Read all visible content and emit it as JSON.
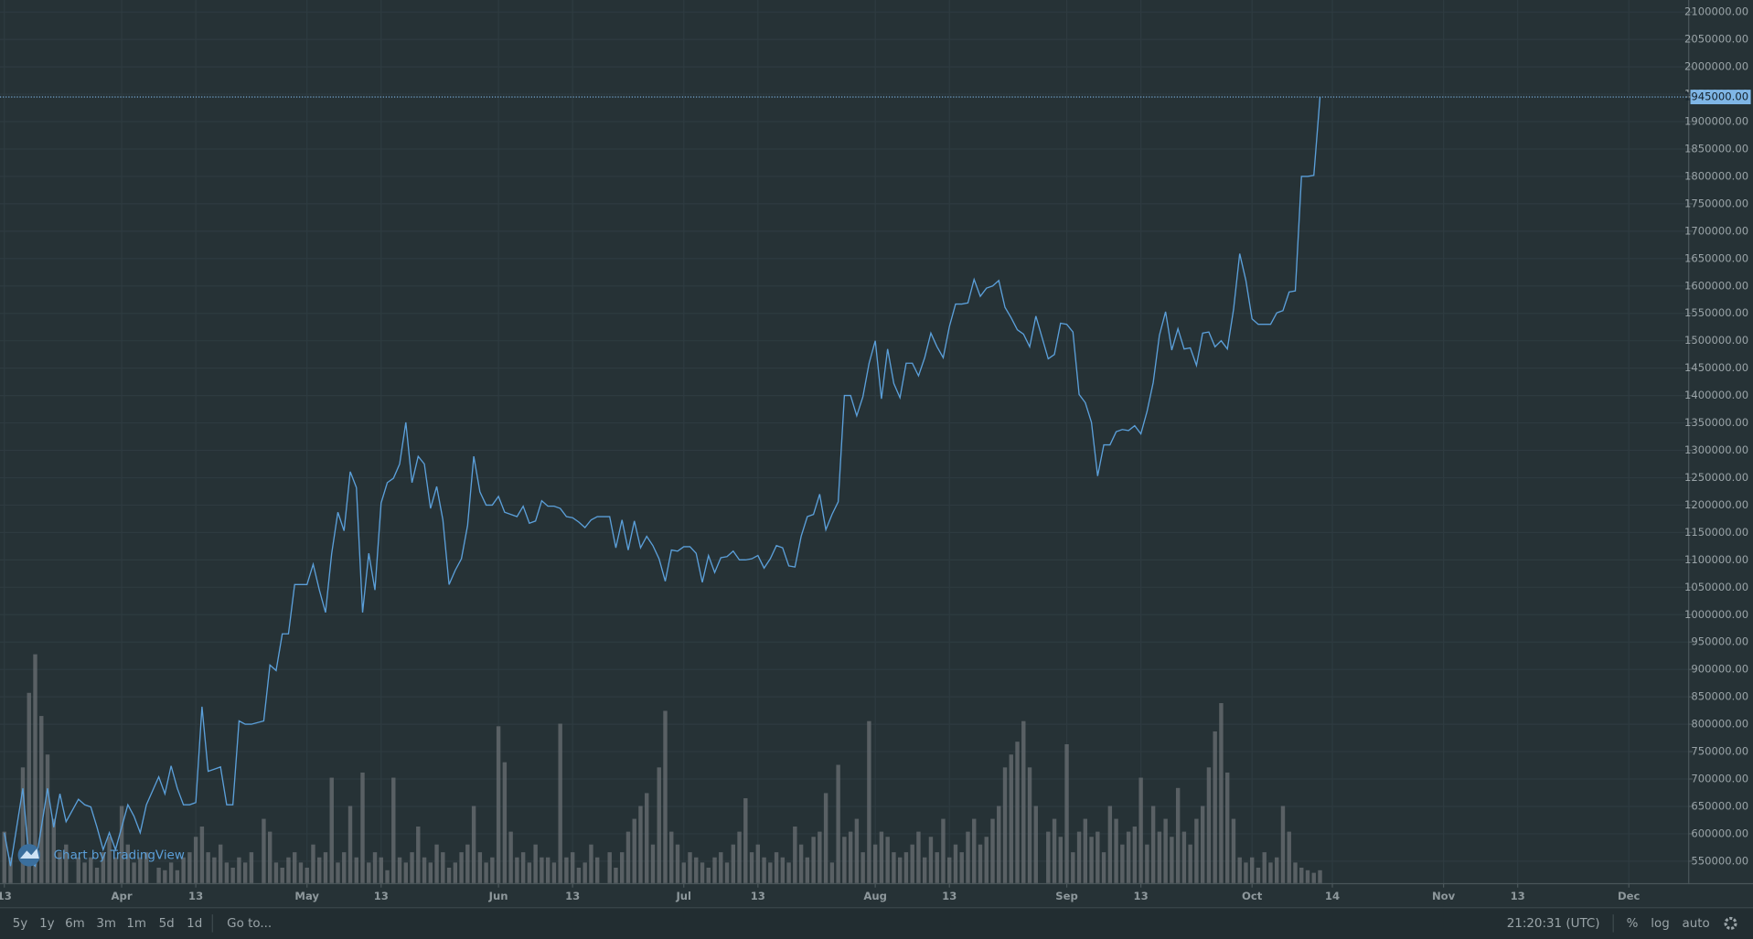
{
  "chart_data": {
    "type": "line",
    "watermark": "Chart by TradingView",
    "x": [
      72,
      73,
      75,
      76,
      77,
      78,
      79,
      80,
      81,
      82,
      84,
      85,
      86,
      87,
      88,
      89,
      90,
      91,
      92,
      93,
      94,
      95,
      97,
      98,
      99,
      100,
      101,
      102,
      103,
      104,
      105,
      106,
      107,
      108,
      109,
      110,
      111,
      112,
      114,
      115,
      116,
      117,
      118,
      119,
      120,
      121,
      122,
      123,
      124,
      125,
      126,
      127,
      128,
      129,
      130,
      131,
      132,
      133,
      134,
      135,
      136,
      137,
      138,
      139,
      140,
      141,
      142,
      143,
      144,
      145,
      146,
      147,
      148,
      149,
      150,
      151,
      152,
      153,
      154,
      155,
      156,
      157,
      158,
      159,
      160,
      161,
      162,
      163,
      164,
      165,
      166,
      167,
      168,
      170,
      171,
      172,
      173,
      174,
      175,
      176,
      177,
      178,
      179,
      180,
      181,
      182,
      183,
      184,
      185,
      186,
      187,
      188,
      189,
      190,
      191,
      192,
      193,
      194,
      195,
      196,
      197,
      198,
      199,
      200,
      201,
      202,
      203,
      204,
      205,
      206,
      207,
      208,
      209,
      210,
      211,
      212,
      213,
      214,
      215,
      216,
      217,
      218,
      219,
      220,
      221,
      222,
      223,
      224,
      225,
      226,
      227,
      228,
      229,
      230,
      231,
      232,
      233,
      234,
      235,
      236,
      237,
      238,
      239,
      241,
      242,
      243,
      244,
      245,
      246,
      247,
      248,
      249,
      250,
      251,
      252,
      253,
      254,
      255,
      256,
      257,
      258,
      259,
      260,
      261,
      262,
      263,
      264,
      265,
      266,
      267,
      268,
      269,
      270,
      271,
      272,
      273,
      274,
      275,
      276,
      277,
      278,
      279,
      280,
      281,
      282,
      283,
      284,
      285
    ],
    "series": [
      {
        "color": "#5b9fd9",
        "values": [
          602000,
          541000,
          683000,
          551000,
          541000,
          612000,
          683000,
          612000,
          673000,
          622000,
          663000,
          653000,
          649000,
          612000,
          571000,
          602000,
          571000,
          612000,
          653000,
          632000,
          602000,
          653000,
          704000,
          673000,
          724000,
          683000,
          653000,
          653000,
          657000,
          832000,
          714000,
          718000,
          722000,
          653000,
          653000,
          806000,
          800000,
          800000,
          806000,
          908000,
          898000,
          965000,
          965000,
          1055000,
          1055000,
          1055000,
          1092000,
          1045000,
          1004000,
          1112000,
          1187000,
          1153000,
          1261000,
          1232000,
          1004000,
          1112000,
          1045000,
          1204000,
          1241000,
          1249000,
          1275000,
          1351000,
          1241000,
          1289000,
          1275000,
          1194000,
          1234000,
          1173000,
          1055000,
          1081000,
          1102000,
          1163000,
          1289000,
          1224000,
          1200000,
          1200000,
          1216000,
          1187000,
          1183000,
          1179000,
          1198000,
          1167000,
          1171000,
          1208000,
          1198000,
          1198000,
          1194000,
          1179000,
          1177000,
          1169000,
          1159000,
          1173000,
          1179000,
          1179000,
          1122000,
          1173000,
          1118000,
          1171000,
          1122000,
          1143000,
          1126000,
          1102000,
          1061000,
          1118000,
          1116000,
          1124000,
          1124000,
          1112000,
          1059000,
          1108000,
          1077000,
          1104000,
          1106000,
          1116000,
          1100000,
          1100000,
          1102000,
          1108000,
          1085000,
          1102000,
          1126000,
          1122000,
          1089000,
          1087000,
          1143000,
          1179000,
          1183000,
          1220000,
          1155000,
          1183000,
          1206000,
          1400000,
          1400000,
          1363000,
          1398000,
          1459000,
          1500000,
          1394000,
          1485000,
          1422000,
          1396000,
          1459000,
          1459000,
          1436000,
          1469000,
          1514000,
          1489000,
          1469000,
          1526000,
          1567000,
          1567000,
          1569000,
          1612000,
          1581000,
          1596000,
          1600000,
          1610000,
          1561000,
          1542000,
          1520000,
          1512000,
          1489000,
          1545000,
          1467000,
          1475000,
          1532000,
          1530000,
          1516000,
          1402000,
          1387000,
          1351000,
          1253000,
          1310000,
          1310000,
          1334000,
          1338000,
          1336000,
          1345000,
          1330000,
          1371000,
          1424000,
          1510000,
          1553000,
          1483000,
          1522000,
          1485000,
          1487000,
          1455000,
          1514000,
          1516000,
          1489000,
          1500000,
          1485000,
          1557000,
          1659000,
          1610000,
          1540000,
          1530000,
          1530000,
          1530000,
          1551000,
          1555000,
          1589000,
          1591000,
          1800000,
          1800000,
          1802000,
          1945000
        ]
      },
      {
        "color": "#6b7074",
        "axis": "y2",
        "values": [
          20,
          10,
          45,
          74,
          89,
          65,
          50,
          25,
          12,
          15,
          10,
          8,
          10,
          6,
          12,
          18,
          10,
          30,
          15,
          8,
          10,
          12,
          6,
          5,
          8,
          5,
          10,
          12,
          18,
          22,
          12,
          10,
          15,
          8,
          6,
          10,
          8,
          12,
          25,
          20,
          8,
          6,
          10,
          12,
          8,
          6,
          15,
          10,
          12,
          41,
          8,
          12,
          30,
          10,
          43,
          8,
          12,
          10,
          5,
          41,
          10,
          8,
          12,
          22,
          10,
          8,
          15,
          12,
          6,
          8,
          12,
          15,
          30,
          12,
          8,
          10,
          61,
          47,
          20,
          10,
          12,
          8,
          15,
          10,
          10,
          8,
          62,
          10,
          12,
          6,
          8,
          15,
          10,
          12,
          6,
          12,
          20,
          25,
          30,
          35,
          15,
          45,
          67,
          20,
          15,
          8,
          12,
          10,
          8,
          6,
          10,
          12,
          8,
          15,
          20,
          33,
          12,
          15,
          10,
          8,
          12,
          10,
          8,
          22,
          15,
          10,
          18,
          20,
          35,
          8,
          46,
          18,
          20,
          25,
          12,
          63,
          15,
          20,
          18,
          12,
          10,
          12,
          15,
          20,
          10,
          18,
          12,
          25,
          10,
          15,
          12,
          20,
          25,
          15,
          18,
          25,
          30,
          45,
          50,
          55,
          63,
          45,
          30,
          20,
          25,
          18,
          54,
          12,
          20,
          25,
          18,
          20,
          12,
          30,
          25,
          15,
          20,
          22,
          41,
          15,
          30,
          20,
          25,
          18,
          37,
          20,
          15,
          25,
          30,
          45,
          59,
          70,
          43,
          25,
          10,
          8,
          10,
          6,
          12,
          8,
          10,
          30,
          20,
          8,
          6,
          5,
          4,
          5
        ]
      }
    ],
    "xlim": [
      71.3,
      344.6
    ],
    "ylim": [
      510000,
      2122000
    ],
    "y2lim": [
      0,
      100
    ],
    "xticks": [
      {
        "value": 72,
        "label": "13"
      },
      {
        "value": 91,
        "label": "Apr"
      },
      {
        "value": 103,
        "label": "13"
      },
      {
        "value": 121,
        "label": "May"
      },
      {
        "value": 133,
        "label": "13"
      },
      {
        "value": 152,
        "label": "Jun"
      },
      {
        "value": 164,
        "label": "13"
      },
      {
        "value": 182,
        "label": "Jul"
      },
      {
        "value": 194,
        "label": "13"
      },
      {
        "value": 213,
        "label": "Aug"
      },
      {
        "value": 225,
        "label": "13"
      },
      {
        "value": 244,
        "label": "Sep"
      },
      {
        "value": 256,
        "label": "13"
      },
      {
        "value": 274,
        "label": "Oct"
      },
      {
        "value": 287,
        "label": "14"
      },
      {
        "value": 305,
        "label": "Nov"
      },
      {
        "value": 317,
        "label": "13"
      },
      {
        "value": 335,
        "label": "Dec"
      }
    ],
    "yticks": [
      {
        "value": 550000,
        "label": "550000.00"
      },
      {
        "value": 600000,
        "label": "600000.00"
      },
      {
        "value": 650000,
        "label": "650000.00"
      },
      {
        "value": 700000,
        "label": "700000.00"
      },
      {
        "value": 750000,
        "label": "750000.00"
      },
      {
        "value": 800000,
        "label": "800000.00"
      },
      {
        "value": 850000,
        "label": "850000.00"
      },
      {
        "value": 900000,
        "label": "900000.00"
      },
      {
        "value": 950000,
        "label": "950000.00"
      },
      {
        "value": 1000000,
        "label": "1000000.00"
      },
      {
        "value": 1050000,
        "label": "1050000.00"
      },
      {
        "value": 1100000,
        "label": "1100000.00"
      },
      {
        "value": 1150000,
        "label": "1150000.00"
      },
      {
        "value": 1200000,
        "label": "1200000.00"
      },
      {
        "value": 1250000,
        "label": "1250000.00"
      },
      {
        "value": 1300000,
        "label": "1300000.00"
      },
      {
        "value": 1350000,
        "label": "1350000.00"
      },
      {
        "value": 1400000,
        "label": "1400000.00"
      },
      {
        "value": 1450000,
        "label": "1450000.00"
      },
      {
        "value": 1500000,
        "label": "1500000.00"
      },
      {
        "value": 1550000,
        "label": "1550000.00"
      },
      {
        "value": 1600000,
        "label": "1600000.00"
      },
      {
        "value": 1650000,
        "label": "1650000.00"
      },
      {
        "value": 1700000,
        "label": "1700000.00"
      },
      {
        "value": 1750000,
        "label": "1750000.00"
      },
      {
        "value": 1800000,
        "label": "1800000.00"
      },
      {
        "value": 1850000,
        "label": "1850000.00"
      },
      {
        "value": 1900000,
        "label": "1900000.00"
      },
      {
        "value": 1950000,
        "label": "1950000.00"
      },
      {
        "value": 2000000,
        "label": "2000000.00"
      },
      {
        "value": 2050000,
        "label": "2050000.00"
      },
      {
        "value": 2100000,
        "label": "2100000.00"
      }
    ],
    "grid": true,
    "last_price": {
      "value": 1945000,
      "label": "1945000.00"
    }
  },
  "ui": {
    "ranges": [
      "5y",
      "1y",
      "6m",
      "3m",
      "1m",
      "5d",
      "1d"
    ],
    "goto": "Go to...",
    "clock": "21:20:31 (UTC)",
    "options": [
      "%",
      "log",
      "auto"
    ]
  }
}
